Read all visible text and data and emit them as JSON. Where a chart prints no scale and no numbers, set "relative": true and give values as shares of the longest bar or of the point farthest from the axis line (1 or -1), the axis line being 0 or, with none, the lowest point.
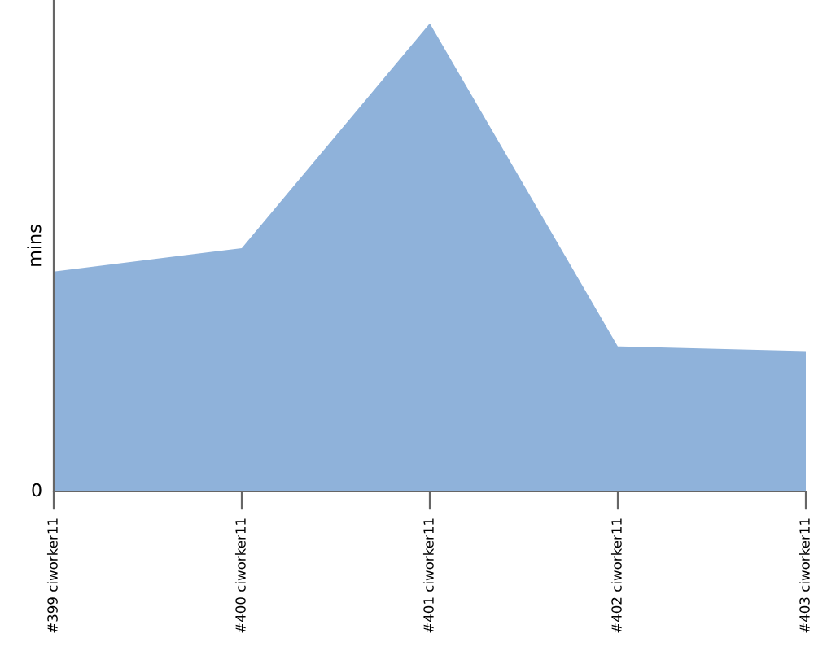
{
  "chart_data": {
    "type": "area",
    "relative": true,
    "ylabel": "mins",
    "categories": [
      "#399 ciworker11",
      "#400 ciworker11",
      "#401 ciworker11",
      "#402 ciworker11",
      "#403 ciworker11"
    ],
    "series": [
      {
        "color": "#8fb2da",
        "values": [
          0.47,
          0.52,
          1,
          0.31,
          0.3
        ]
      }
    ],
    "annotations": [
      "0"
    ]
  }
}
